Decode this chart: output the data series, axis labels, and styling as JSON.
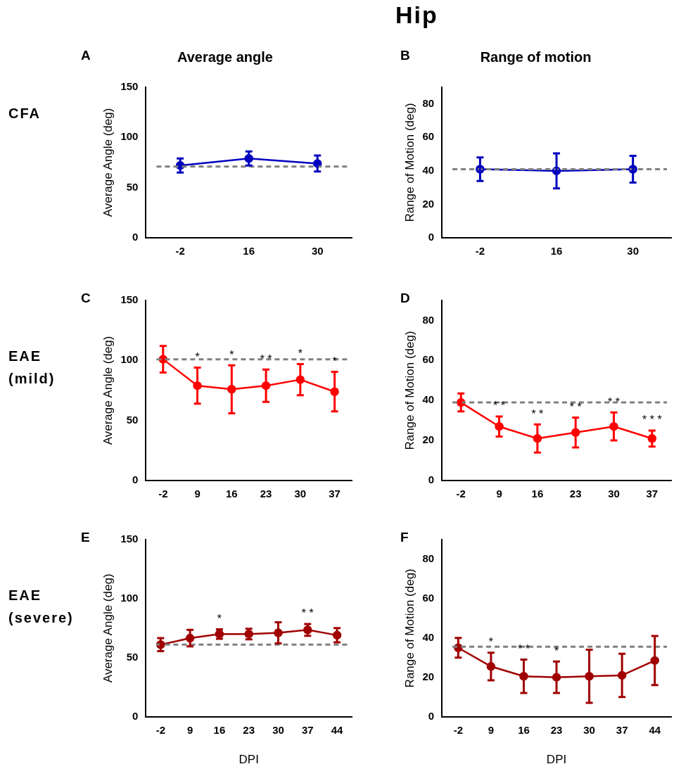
{
  "chart_data": [
    {
      "type": "line",
      "title": "Average angle",
      "ylabel": "Average Angle (deg)",
      "categories": [
        "-2",
        "16",
        "30"
      ],
      "series": [
        {
          "color": "#0000c0",
          "values": [
            72,
            79,
            74
          ],
          "errors": [
            7,
            7,
            8
          ]
        }
      ],
      "ylim": [
        0,
        150
      ],
      "yticks": [
        0,
        50,
        100,
        150
      ],
      "grid": false,
      "legend": false,
      "marker": "circle",
      "line_style": "solid",
      "ref_lines": [
        {
          "axis": "y",
          "value": 71,
          "color": "#808080",
          "line_style": "dashed"
        }
      ],
      "annotations": [
        "A",
        "CFA",
        "Hip"
      ]
    },
    {
      "type": "line",
      "title": "Range of motion",
      "ylabel": "Range of Motion (deg)",
      "categories": [
        "-2",
        "16",
        "30"
      ],
      "series": [
        {
          "color": "#0000c0",
          "values": [
            41,
            40,
            41
          ],
          "errors": [
            7,
            10.5,
            8
          ]
        }
      ],
      "ylim": [
        0,
        90
      ],
      "yticks": [
        0,
        20,
        40,
        60,
        80
      ],
      "grid": false,
      "legend": false,
      "marker": "circle",
      "line_style": "solid",
      "ref_lines": [
        {
          "axis": "y",
          "value": 41,
          "color": "#808080",
          "line_style": "dashed"
        }
      ],
      "annotations": [
        "B"
      ]
    },
    {
      "type": "line",
      "ylabel": "Average Angle (deg)",
      "categories": [
        "-2",
        "9",
        "16",
        "23",
        "30",
        "37"
      ],
      "series": [
        {
          "color": "#ff0000",
          "values": [
            101,
            79,
            76,
            79,
            84,
            74
          ],
          "errors": [
            11,
            15,
            20,
            13.5,
            13,
            16.5
          ],
          "value_labels": [
            null,
            "*",
            "*",
            "* *",
            "*",
            "*"
          ]
        }
      ],
      "ylim": [
        0,
        150
      ],
      "yticks": [
        0,
        50,
        100,
        150
      ],
      "grid": false,
      "legend": false,
      "marker": "circle",
      "line_style": "solid",
      "ref_lines": [
        {
          "axis": "y",
          "value": 101,
          "color": "#808080",
          "line_style": "dashed"
        }
      ],
      "annotations": [
        "C",
        "EAE (mild)"
      ]
    },
    {
      "type": "line",
      "ylabel": "Range of Motion (deg)",
      "categories": [
        "-2",
        "9",
        "16",
        "23",
        "30",
        "37"
      ],
      "series": [
        {
          "color": "#ff0000",
          "values": [
            39,
            27,
            21,
            24,
            27,
            21
          ],
          "errors": [
            4.5,
            5,
            7,
            7.5,
            7,
            4
          ],
          "value_labels": [
            null,
            "* *",
            "* *",
            "* *",
            "* *",
            "* * *"
          ]
        }
      ],
      "ylim": [
        0,
        90
      ],
      "yticks": [
        0,
        20,
        40,
        60,
        80
      ],
      "grid": false,
      "legend": false,
      "marker": "circle",
      "line_style": "solid",
      "ref_lines": [
        {
          "axis": "y",
          "value": 39,
          "color": "#808080",
          "line_style": "dashed"
        }
      ],
      "annotations": [
        "D"
      ]
    },
    {
      "type": "line",
      "xlabel": "DPI",
      "ylabel": "Average Angle (deg)",
      "categories": [
        "-2",
        "9",
        "16",
        "23",
        "30",
        "37",
        "44"
      ],
      "series": [
        {
          "color": "#a00000",
          "values": [
            61,
            66.5,
            70,
            70,
            71,
            73.5,
            69
          ],
          "errors": [
            5.5,
            7,
            4,
            4.5,
            9,
            5,
            6
          ],
          "value_labels": [
            null,
            null,
            "*",
            null,
            null,
            "* *",
            null
          ]
        }
      ],
      "ylim": [
        0,
        150
      ],
      "yticks": [
        0,
        50,
        100,
        150
      ],
      "grid": false,
      "legend": false,
      "marker": "circle",
      "line_style": "solid",
      "ref_lines": [
        {
          "axis": "y",
          "value": 61,
          "color": "#808080",
          "line_style": "dashed"
        }
      ],
      "annotations": [
        "E",
        "EAE (severe)"
      ]
    },
    {
      "type": "line",
      "xlabel": "DPI",
      "ylabel": "Range of Motion (deg)",
      "categories": [
        "-2",
        "9",
        "16",
        "23",
        "30",
        "37",
        "44"
      ],
      "series": [
        {
          "color": "#a00000",
          "values": [
            35,
            25.5,
            20.5,
            20,
            20.5,
            21,
            28.5
          ],
          "errors": [
            5,
            7,
            8.5,
            8,
            13.5,
            11,
            12.5
          ],
          "value_labels": [
            null,
            "*",
            "* *",
            "*",
            null,
            null,
            null
          ]
        }
      ],
      "ylim": [
        0,
        90
      ],
      "yticks": [
        0,
        20,
        40,
        60,
        80
      ],
      "grid": false,
      "legend": false,
      "marker": "circle",
      "line_style": "solid",
      "ref_lines": [
        {
          "axis": "y",
          "value": 35.5,
          "color": "#808080",
          "line_style": "dashed"
        }
      ],
      "annotations": [
        "F"
      ]
    }
  ]
}
